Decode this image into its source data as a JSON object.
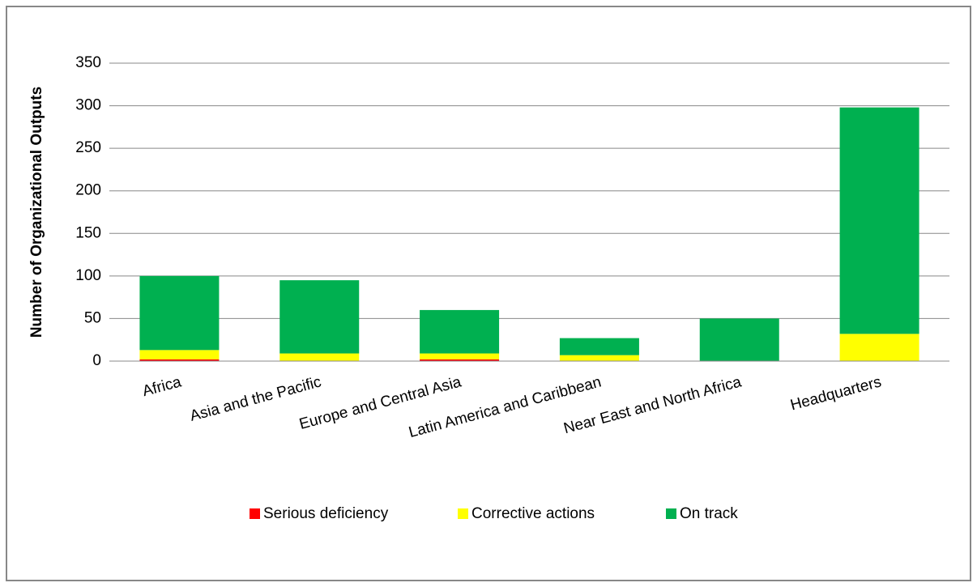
{
  "chart_data": {
    "type": "stacked_bar",
    "y_label": "Number of Organizational Outputs",
    "categories": [
      "Africa",
      "Asia and the Pacific",
      "Europe and Central Asia",
      "Latin America and Caribbean",
      "Near East and North Africa",
      "Headquarters"
    ],
    "series": [
      {
        "name": "Serious deficiency",
        "color": "#ff0000",
        "values": [
          2,
          0,
          2,
          0,
          0,
          0
        ]
      },
      {
        "name": "Corrective actions",
        "color": "#ffff00",
        "values": [
          11,
          9,
          7,
          7,
          0,
          32
        ]
      },
      {
        "name": "On track",
        "color": "#00b050",
        "values": [
          87,
          86,
          51,
          20,
          50,
          266
        ]
      }
    ],
    "ylim": [
      0,
      350
    ],
    "yticks": [
      0,
      50,
      100,
      150,
      200,
      250,
      300,
      350
    ],
    "grid": true,
    "legend": "bottom"
  }
}
